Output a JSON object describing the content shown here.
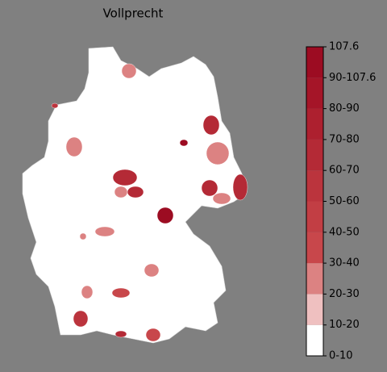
{
  "map": {
    "title": "Vollprecht",
    "colorbar": {
      "labels": [
        "0-10",
        "10-20",
        "20-30",
        "30-40",
        "40-50",
        "50-60",
        "60-70",
        "70-80",
        "80-90",
        "90-107.6",
        "107.6"
      ],
      "colors": [
        "#ffffff",
        "#efc0c0",
        "#dc8282",
        "#c8474b",
        "#c23e44",
        "#bb343d",
        "#b42a36",
        "#ad202f",
        "#a51528",
        "#9c0c22"
      ]
    },
    "regions": [
      100,
      95,
      60,
      60,
      60,
      65,
      60,
      25,
      20,
      20,
      20,
      20,
      20,
      25,
      25,
      30,
      55,
      30,
      60,
      50,
      25
    ]
  }
}
